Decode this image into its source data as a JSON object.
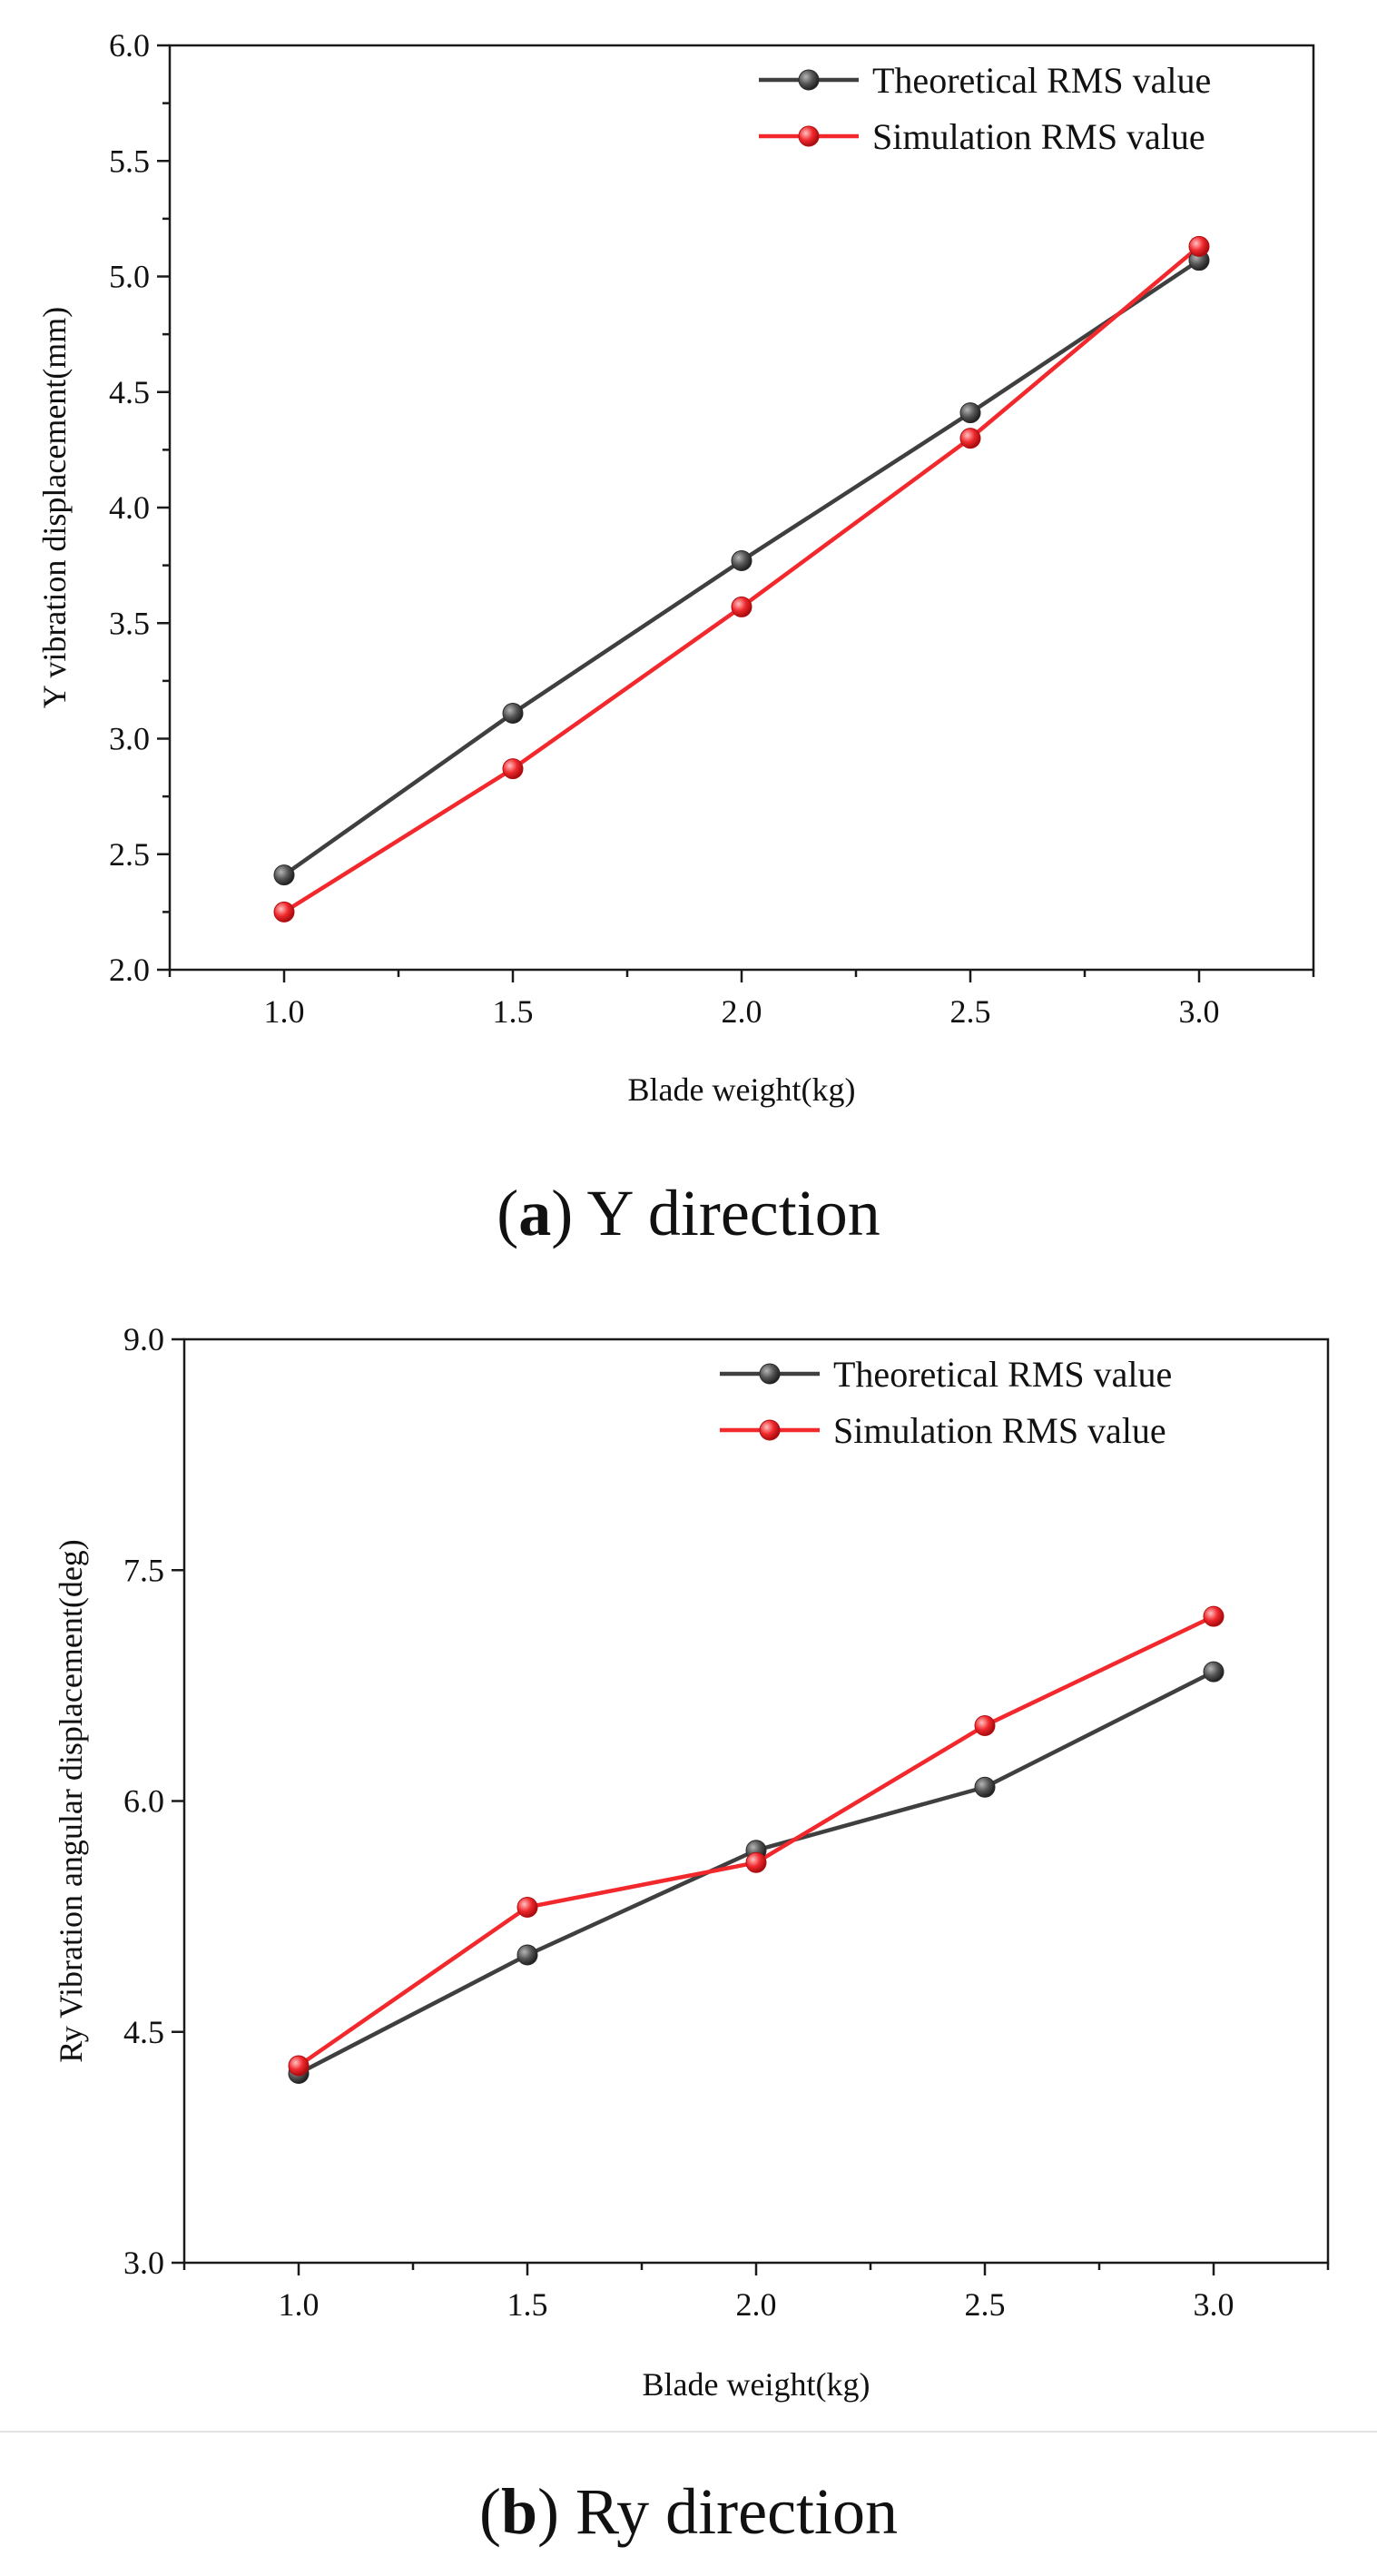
{
  "colors": {
    "theoretical": "#3f3f3f",
    "simulation": "#f2282c",
    "axis": "#1a1a1a"
  },
  "chart_data": [
    {
      "type": "line",
      "id": "a",
      "caption_letter": "a",
      "caption_text": " Y direction",
      "xlabel": "Blade weight(kg)",
      "ylabel": "Y vibration displacement(mm)",
      "x": [
        1.0,
        1.5,
        2.0,
        2.5,
        3.0
      ],
      "xlim": [
        0.75,
        3.25
      ],
      "ylim": [
        2.0,
        6.0
      ],
      "xticks": [
        "1.0",
        "1.5",
        "2.0",
        "2.5",
        "3.0"
      ],
      "xtick_values": [
        1.0,
        1.5,
        2.0,
        2.5,
        3.0
      ],
      "yticks": [
        "2.0",
        "2.5",
        "3.0",
        "3.5",
        "4.0",
        "4.5",
        "5.0",
        "5.5",
        "6.0"
      ],
      "ytick_values": [
        2.0,
        2.5,
        3.0,
        3.5,
        4.0,
        4.5,
        5.0,
        5.5,
        6.0
      ],
      "legend_position": "top-right",
      "series": [
        {
          "name": "Theoretical RMS value",
          "values": [
            2.41,
            3.11,
            3.77,
            4.41,
            5.07
          ]
        },
        {
          "name": "Simulation RMS value",
          "values": [
            2.25,
            2.87,
            3.57,
            4.3,
            5.13
          ]
        }
      ]
    },
    {
      "type": "line",
      "id": "b",
      "caption_letter": "b",
      "caption_text": " Ry direction",
      "xlabel": "Blade weight(kg)",
      "ylabel": "Ry Vibration angular displacement(deg)",
      "x": [
        1.0,
        1.5,
        2.0,
        2.5,
        3.0
      ],
      "xlim": [
        0.75,
        3.25
      ],
      "ylim": [
        3.0,
        9.0
      ],
      "xticks": [
        "1.0",
        "1.5",
        "2.0",
        "2.5",
        "3.0"
      ],
      "xtick_values": [
        1.0,
        1.5,
        2.0,
        2.5,
        3.0
      ],
      "yticks": [
        "3.0",
        "4.5",
        "6.0",
        "7.5",
        "9.0"
      ],
      "ytick_values": [
        3.0,
        4.5,
        6.0,
        7.5,
        9.0
      ],
      "legend_position": "top-right",
      "series": [
        {
          "name": "Theoretical RMS value",
          "values": [
            4.23,
            5.0,
            5.68,
            6.09,
            6.84
          ]
        },
        {
          "name": "Simulation RMS value",
          "values": [
            4.28,
            5.31,
            5.6,
            6.49,
            7.2
          ]
        }
      ]
    }
  ]
}
